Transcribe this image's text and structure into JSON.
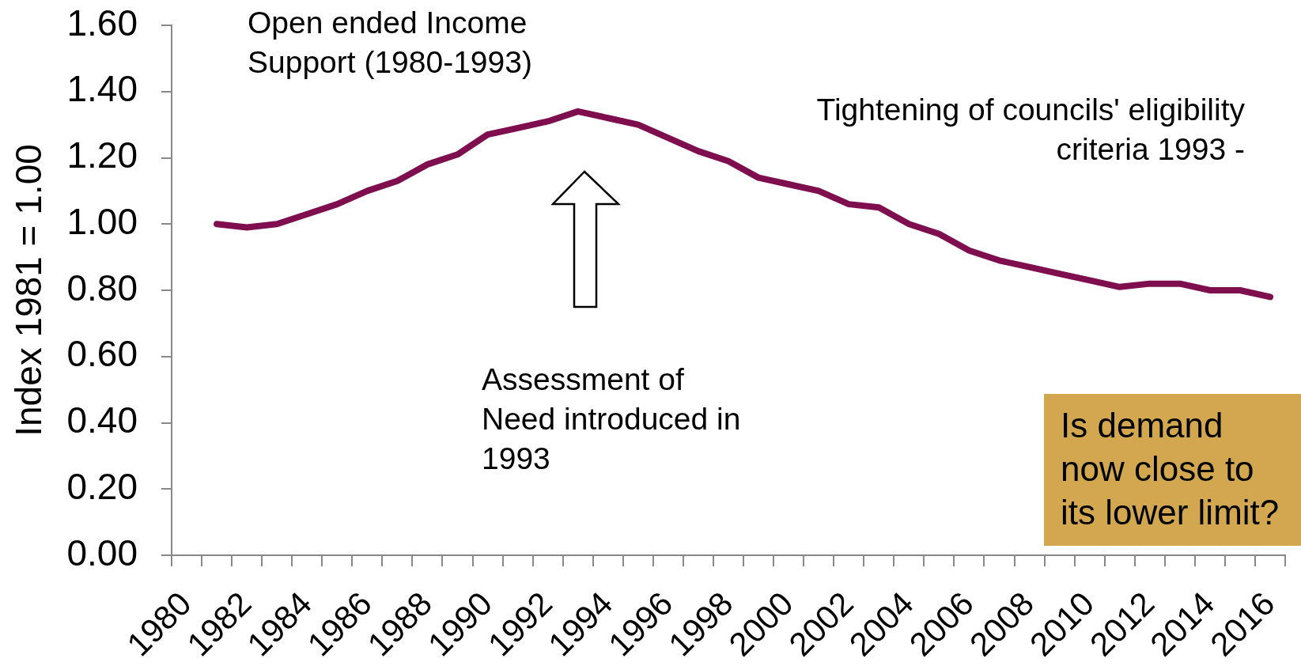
{
  "chart_data": {
    "type": "line",
    "ylabel": "Index 1981 = 1.00",
    "categories": [
      "1980",
      null,
      "1982",
      null,
      "1984",
      null,
      "1986",
      null,
      "1988",
      null,
      "1990",
      null,
      "1992",
      null,
      "1994",
      null,
      "1996",
      null,
      "1998",
      null,
      "2000",
      null,
      "2002",
      null,
      "2004",
      null,
      "2006",
      null,
      "2008",
      null,
      "2010",
      null,
      "2012",
      null,
      "2014",
      null,
      "2016"
    ],
    "values": [
      null,
      1.0,
      0.99,
      1.0,
      1.03,
      1.06,
      1.1,
      1.13,
      1.18,
      1.21,
      1.27,
      1.29,
      1.31,
      1.34,
      1.32,
      1.3,
      1.26,
      1.22,
      1.19,
      1.14,
      1.12,
      1.1,
      1.06,
      1.05,
      1.0,
      0.97,
      0.92,
      0.89,
      0.87,
      0.85,
      0.83,
      0.81,
      0.82,
      0.82,
      0.8,
      0.8,
      0.78
    ],
    "color": "#7f0e4f",
    "ylim": [
      0,
      1.6
    ],
    "yticks": [
      {
        "value": 0,
        "label": "0.00"
      },
      {
        "value": 0.2,
        "label": "0.20"
      },
      {
        "value": 0.4,
        "label": "0.40"
      },
      {
        "value": 0.6,
        "label": "0.60"
      },
      {
        "value": 0.8,
        "label": "0.80"
      },
      {
        "value": 1.0,
        "label": "1.00"
      },
      {
        "value": 1.2,
        "label": "1.20"
      },
      {
        "value": 1.4,
        "label": "1.40"
      },
      {
        "value": 1.6,
        "label": "1.60"
      }
    ],
    "annotations": [
      "Open ended Income Support (1980-1993)",
      "Tightening of councils' eligibility criteria 1993 -",
      "Assessment of Need introduced in 1993",
      "Is demand now close to its lower limit?"
    ]
  }
}
